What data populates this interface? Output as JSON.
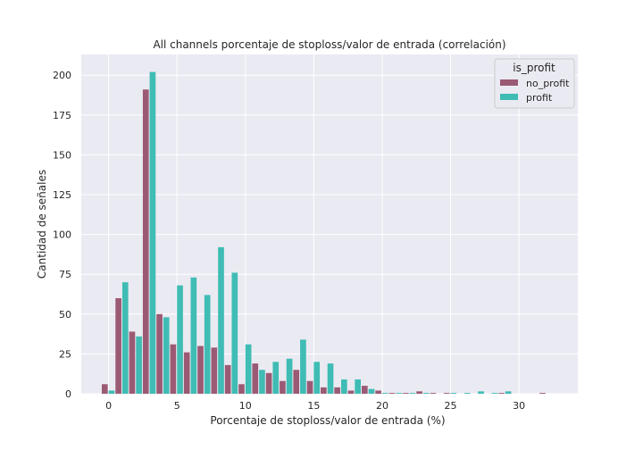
{
  "chart_data": {
    "type": "bar",
    "title": "All channels porcentaje de stoploss/valor de entrada (correlación)",
    "xlabel": "Porcentaje de stoploss/valor de entrada (%)",
    "ylabel": "Cantidad de señales",
    "xlim": [
      -2,
      34.3
    ],
    "ylim": [
      0,
      213
    ],
    "bin_width": 1,
    "x_ticks": [
      0,
      5,
      10,
      15,
      20,
      25,
      30
    ],
    "x_tick_labels": [
      "0",
      "5",
      "10",
      "15",
      "20",
      "25",
      "30"
    ],
    "y_ticks": [
      0,
      25,
      50,
      75,
      100,
      125,
      150,
      175,
      200
    ],
    "y_tick_labels": [
      "0",
      "25",
      "50",
      "75",
      "100",
      "125",
      "150",
      "175",
      "200"
    ],
    "grid": true,
    "legend_position": "top-right",
    "legend_title": "is_profit",
    "bin_starts": [
      -0.5,
      0.5,
      1.5,
      2.5,
      3.5,
      4.5,
      5.5,
      6.5,
      7.5,
      8.5,
      9.5,
      10.5,
      11.5,
      12.5,
      13.5,
      14.5,
      15.5,
      16.5,
      17.5,
      18.5,
      19.5,
      20.5,
      21.5,
      22.5,
      23.5,
      24.5,
      25.5,
      26.5,
      27.5,
      28.5,
      29.5,
      30.5,
      31.5
    ],
    "series": [
      {
        "name": "no_profit",
        "color": "#9b5a74",
        "values": [
          6,
          60,
          39,
          191,
          50,
          31,
          26,
          30,
          29,
          18,
          6,
          19,
          13,
          8,
          15,
          8,
          4,
          4,
          2,
          5,
          2,
          0.5,
          0.5,
          1.5,
          0.5,
          0.5,
          0,
          0,
          0,
          0.5,
          0,
          0,
          0.5
        ]
      },
      {
        "name": "profit",
        "color": "#3fbcb4",
        "values": [
          2,
          70,
          36,
          202,
          48,
          68,
          73,
          62,
          92,
          76,
          31,
          15,
          20,
          22,
          34,
          20,
          19,
          9,
          9,
          3,
          0.5,
          0.5,
          0.5,
          0.5,
          0,
          0.5,
          0.5,
          1.5,
          0.5,
          1.5,
          0,
          0,
          0
        ]
      }
    ]
  }
}
